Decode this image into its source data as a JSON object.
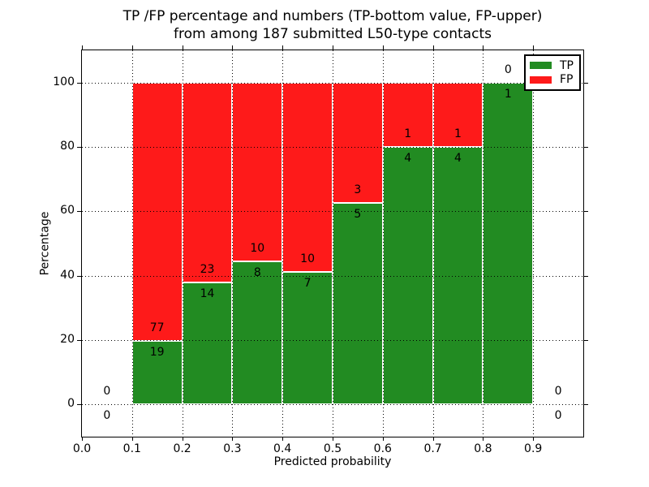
{
  "chart_data": {
    "type": "bar",
    "stacked": true,
    "title_lines": [
      "TP /FP percentage and numbers (TP-bottom value, FP-upper)",
      "from among 187 submitted L50-type contacts"
    ],
    "title": "TP /FP percentage and numbers (TP-bottom value, FP-upper)\nfrom among 187 submitted L50-type contacts",
    "xlabel": "Predicted probability",
    "ylabel": "Percentage",
    "total_contacts": 187,
    "xlim": [
      0.0,
      1.0
    ],
    "ylim": [
      -10,
      110
    ],
    "grid": true,
    "legend_position": "upper right",
    "xticks": [
      "0.0",
      "0.1",
      "0.2",
      "0.3",
      "0.4",
      "0.5",
      "0.6",
      "0.7",
      "0.8",
      "0.9"
    ],
    "yticks": [
      "0",
      "20",
      "40",
      "60",
      "80",
      "100"
    ],
    "colors": {
      "tp": "#228b22",
      "fp": "#fe1a1a"
    },
    "legend": [
      {
        "label": "TP",
        "series": "tp"
      },
      {
        "label": "FP",
        "series": "fp"
      }
    ],
    "bins": [
      {
        "range": [
          0.0,
          0.1
        ],
        "tp": 0,
        "fp": 0,
        "tp_pct": 0,
        "fp_pct": 0
      },
      {
        "range": [
          0.1,
          0.2
        ],
        "tp": 19,
        "fp": 77,
        "tp_pct": 19.79,
        "fp_pct": 80.21
      },
      {
        "range": [
          0.2,
          0.3
        ],
        "tp": 14,
        "fp": 23,
        "tp_pct": 37.84,
        "fp_pct": 62.16
      },
      {
        "range": [
          0.3,
          0.4
        ],
        "tp": 8,
        "fp": 10,
        "tp_pct": 44.44,
        "fp_pct": 55.56
      },
      {
        "range": [
          0.4,
          0.5
        ],
        "tp": 7,
        "fp": 10,
        "tp_pct": 41.18,
        "fp_pct": 58.82
      },
      {
        "range": [
          0.5,
          0.6
        ],
        "tp": 5,
        "fp": 3,
        "tp_pct": 62.5,
        "fp_pct": 37.5
      },
      {
        "range": [
          0.6,
          0.7
        ],
        "tp": 4,
        "fp": 1,
        "tp_pct": 80.0,
        "fp_pct": 20.0
      },
      {
        "range": [
          0.7,
          0.8
        ],
        "tp": 4,
        "fp": 1,
        "tp_pct": 80.0,
        "fp_pct": 20.0
      },
      {
        "range": [
          0.8,
          0.9
        ],
        "tp": 1,
        "fp": 0,
        "tp_pct": 100.0,
        "fp_pct": 0.0
      },
      {
        "range": [
          0.9,
          1.0
        ],
        "tp": 0,
        "fp": 0,
        "tp_pct": 0,
        "fp_pct": 0
      }
    ]
  }
}
